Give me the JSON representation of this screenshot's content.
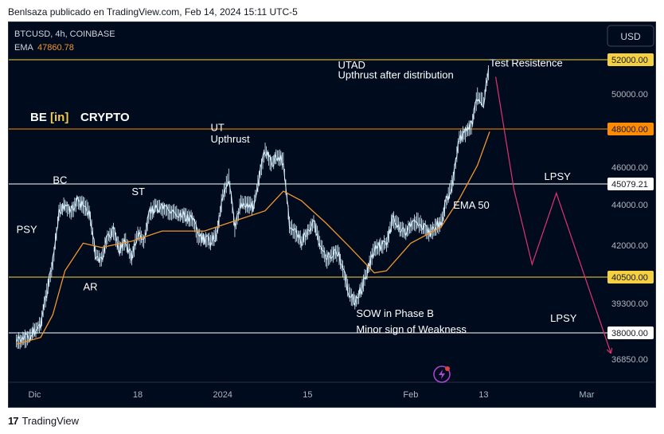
{
  "header": {
    "title": "Benlsaza publicado en TradingView.com, Feb 14, 2024 15:11 UTC-5"
  },
  "footer": {
    "brand": "TradingView",
    "logo_icon": "tradingview-logo-icon"
  },
  "chart_data": {
    "type": "candlestick-line",
    "symbol": "BTCUSD, 4h, COINBASE",
    "ema_label": "EMA",
    "ema_value": "47860.78",
    "currency": "USD",
    "brand": {
      "left": "BE",
      "mid": "[in]",
      "right": "CRYPTO"
    },
    "ylim": [
      36200,
      53300
    ],
    "x_ticks": [
      "Dic",
      "18",
      "2024",
      "15",
      "Feb",
      "13",
      "Mar"
    ],
    "y_ticks": [
      "50000.00",
      "46000.00",
      "44000.00",
      "42000.00",
      "39300.00",
      "36850.00"
    ],
    "hlines": [
      {
        "label": "52000.00",
        "value": 52000,
        "color": "#f5d142",
        "tag_bg": "#f5d142",
        "tag_fg": "#131722"
      },
      {
        "label": "48000.00",
        "value": 48000,
        "color": "#ff8c00",
        "tag_bg": "#ff8c00",
        "tag_fg": "#131722"
      },
      {
        "label": "45079.21",
        "value": 45079,
        "color": "#ffffff",
        "tag_bg": "#ffffff",
        "tag_fg": "#131722"
      },
      {
        "label": "40500.00",
        "value": 40500,
        "color": "#f5d142",
        "tag_bg": "#f5d142",
        "tag_fg": "#131722"
      },
      {
        "label": "38000.00",
        "value": 38000,
        "color": "#ffffff",
        "tag_bg": "#ffffff",
        "tag_fg": "#131722"
      }
    ],
    "price_path": [
      {
        "date": "2023-11-28",
        "p": 37600
      },
      {
        "date": "2023-11-30",
        "p": 37800
      },
      {
        "date": "2023-12-02",
        "p": 38400
      },
      {
        "date": "2023-12-04",
        "p": 41200
      },
      {
        "date": "2023-12-05",
        "p": 43600
      },
      {
        "date": "2023-12-06",
        "p": 44000
      },
      {
        "date": "2023-12-07",
        "p": 43600
      },
      {
        "date": "2023-12-08",
        "p": 44200
      },
      {
        "date": "2023-12-10",
        "p": 43700
      },
      {
        "date": "2023-12-11",
        "p": 41600
      },
      {
        "date": "2023-12-12",
        "p": 41300
      },
      {
        "date": "2023-12-13",
        "p": 42400
      },
      {
        "date": "2023-12-14",
        "p": 42700
      },
      {
        "date": "2023-12-15",
        "p": 41800
      },
      {
        "date": "2023-12-16",
        "p": 42200
      },
      {
        "date": "2023-12-17",
        "p": 41400
      },
      {
        "date": "2023-12-18",
        "p": 42600
      },
      {
        "date": "2023-12-19",
        "p": 42200
      },
      {
        "date": "2023-12-20",
        "p": 43600
      },
      {
        "date": "2023-12-21",
        "p": 43900
      },
      {
        "date": "2023-12-23",
        "p": 43700
      },
      {
        "date": "2023-12-25",
        "p": 43500
      },
      {
        "date": "2023-12-27",
        "p": 43300
      },
      {
        "date": "2023-12-28",
        "p": 42400
      },
      {
        "date": "2023-12-30",
        "p": 42200
      },
      {
        "date": "2023-12-31",
        "p": 42500
      },
      {
        "date": "2024-01-01",
        "p": 44500
      },
      {
        "date": "2024-01-02",
        "p": 45400
      },
      {
        "date": "2024-01-03",
        "p": 42800
      },
      {
        "date": "2024-01-04",
        "p": 44100
      },
      {
        "date": "2024-01-06",
        "p": 43900
      },
      {
        "date": "2024-01-08",
        "p": 46900
      },
      {
        "date": "2024-01-09",
        "p": 46200
      },
      {
        "date": "2024-01-10",
        "p": 46600
      },
      {
        "date": "2024-01-11",
        "p": 46300
      },
      {
        "date": "2024-01-12",
        "p": 43000
      },
      {
        "date": "2024-01-14",
        "p": 42200
      },
      {
        "date": "2024-01-16",
        "p": 43100
      },
      {
        "date": "2024-01-18",
        "p": 41300
      },
      {
        "date": "2024-01-20",
        "p": 41700
      },
      {
        "date": "2024-01-22",
        "p": 39600
      },
      {
        "date": "2024-01-23",
        "p": 39400
      },
      {
        "date": "2024-01-24",
        "p": 40100
      },
      {
        "date": "2024-01-26",
        "p": 41800
      },
      {
        "date": "2024-01-28",
        "p": 42100
      },
      {
        "date": "2024-01-29",
        "p": 43300
      },
      {
        "date": "2024-01-31",
        "p": 42600
      },
      {
        "date": "2024-02-02",
        "p": 43200
      },
      {
        "date": "2024-02-04",
        "p": 42600
      },
      {
        "date": "2024-02-06",
        "p": 43100
      },
      {
        "date": "2024-02-07",
        "p": 44300
      },
      {
        "date": "2024-02-08",
        "p": 45300
      },
      {
        "date": "2024-02-09",
        "p": 47500
      },
      {
        "date": "2024-02-10",
        "p": 47800
      },
      {
        "date": "2024-02-11",
        "p": 48200
      },
      {
        "date": "2024-02-12",
        "p": 49900
      },
      {
        "date": "2024-02-13",
        "p": 49500
      },
      {
        "date": "2024-02-14",
        "p": 51800
      }
    ],
    "ema50": [
      {
        "date": "2023-11-28",
        "p": 37500
      },
      {
        "date": "2023-12-02",
        "p": 37800
      },
      {
        "date": "2023-12-04",
        "p": 38800
      },
      {
        "date": "2023-12-06",
        "p": 40800
      },
      {
        "date": "2023-12-09",
        "p": 42100
      },
      {
        "date": "2023-12-12",
        "p": 41900
      },
      {
        "date": "2023-12-17",
        "p": 42200
      },
      {
        "date": "2023-12-22",
        "p": 42700
      },
      {
        "date": "2023-12-29",
        "p": 42700
      },
      {
        "date": "2024-01-03",
        "p": 43200
      },
      {
        "date": "2024-01-08",
        "p": 43700
      },
      {
        "date": "2024-01-11",
        "p": 44700
      },
      {
        "date": "2024-01-14",
        "p": 44200
      },
      {
        "date": "2024-01-18",
        "p": 43100
      },
      {
        "date": "2024-01-22",
        "p": 41900
      },
      {
        "date": "2024-01-26",
        "p": 40700
      },
      {
        "date": "2024-01-28",
        "p": 40800
      },
      {
        "date": "2024-02-01",
        "p": 42100
      },
      {
        "date": "2024-02-06",
        "p": 42900
      },
      {
        "date": "2024-02-09",
        "p": 44300
      },
      {
        "date": "2024-02-12",
        "p": 46100
      },
      {
        "date": "2024-02-14",
        "p": 47860
      }
    ],
    "projection": [
      {
        "date": "2024-02-15",
        "p": 51000
      },
      {
        "date": "2024-02-18",
        "p": 44800
      },
      {
        "date": "2024-02-21",
        "p": 41100
      },
      {
        "date": "2024-02-25",
        "p": 44600
      },
      {
        "date": "2024-03-05",
        "p": 37100
      }
    ],
    "annotations": [
      {
        "text": "PSY",
        "date": "2023-11-28",
        "p": 42600
      },
      {
        "text": "BC",
        "date": "2023-12-04",
        "p": 45100
      },
      {
        "text": "AR",
        "date": "2023-12-09",
        "p": 39900
      },
      {
        "text": "ST",
        "date": "2023-12-17",
        "p": 44500
      },
      {
        "text": "UT",
        "date": "2023-12-30",
        "p": 47900
      },
      {
        "text": "Upthrust",
        "date": "2023-12-30",
        "p": 47300
      },
      {
        "text": "UTAD",
        "date": "2024-01-20",
        "p": 51500
      },
      {
        "text": "Upthrust after distribution",
        "date": "2024-01-20",
        "p": 50900
      },
      {
        "text": "Test Resistence",
        "date": "2024-02-14",
        "p": 51600
      },
      {
        "text": "EMA 50",
        "date": "2024-02-08",
        "p": 43800
      },
      {
        "text": "LPSY",
        "date": "2024-02-23",
        "p": 45300
      },
      {
        "text": "SOW in Phase B",
        "date": "2024-01-23",
        "p": 38700
      },
      {
        "text": "Minor sign of Weakness",
        "date": "2024-01-23",
        "p": 38000
      },
      {
        "text": "LPSY",
        "date": "2024-02-24",
        "p": 38500
      }
    ],
    "colors": {
      "background": "#010b1e",
      "candle": "#d9f2ff",
      "ema": "#f0962c",
      "projection": "#e0336e",
      "brand": "#ffffff",
      "brand_bracket": "#f2c94c"
    }
  }
}
